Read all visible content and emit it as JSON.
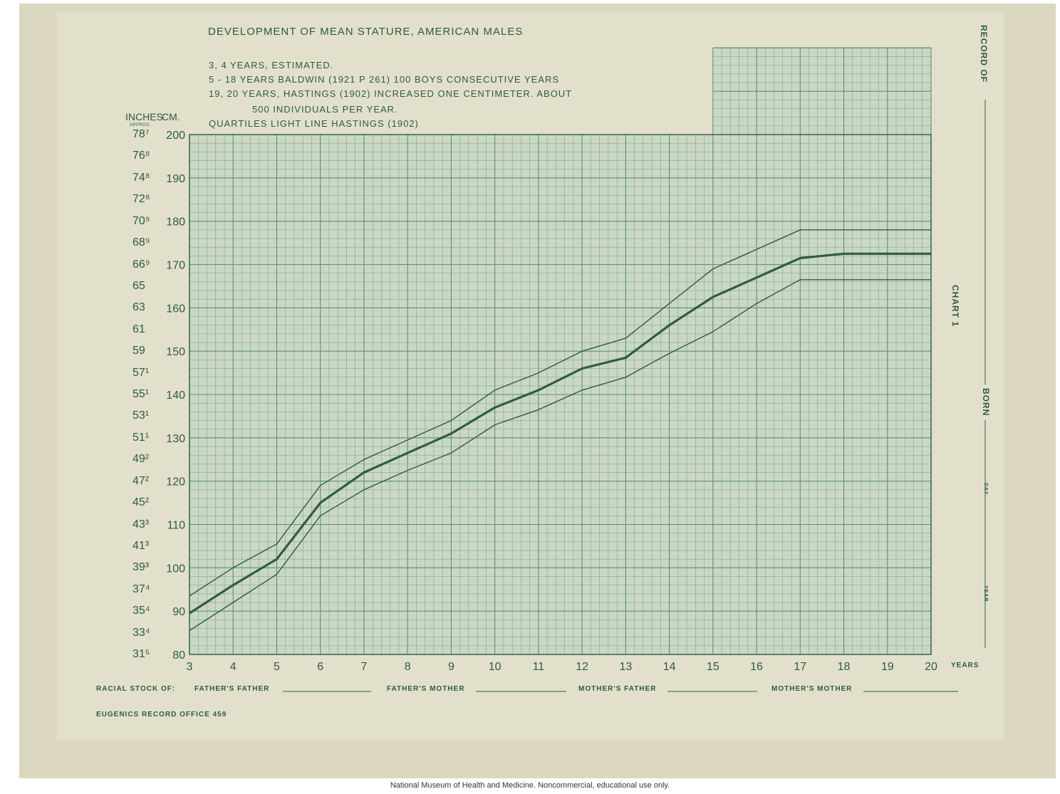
{
  "title": "DEVELOPMENT OF MEAN STATURE, AMERICAN MALES",
  "notes": [
    "3, 4 YEARS, ESTIMATED.",
    "5 - 18 YEARS BALDWIN (1921 P 261) 100 BOYS CONSECUTIVE YEARS",
    "19, 20 YEARS, HASTINGS (1902) INCREASED ONE CENTIMETER.  ABOUT",
    "500 INDIVIDUALS PER YEAR.",
    "QUARTILES LIGHT LINE HASTINGS (1902)"
  ],
  "axis_units": {
    "inches": "INCHES",
    "approx": "APPROX.",
    "cm": "CM.",
    "years": "YEARS"
  },
  "inch_labels": [
    "78⁷",
    "76⁸",
    "74⁸",
    "72⁸",
    "70⁹",
    "68⁹",
    "66⁹",
    "65",
    "63",
    "61",
    "59",
    "57¹",
    "55¹",
    "53¹",
    "51¹",
    "49²",
    "47²",
    "45²",
    "43³",
    "41³",
    "39³",
    "37⁴",
    "35⁴",
    "33⁴",
    "31⁵"
  ],
  "racial_stock": {
    "label": "RACIAL STOCK OF:",
    "ff": "FATHER'S FATHER",
    "fm": "FATHER'S MOTHER",
    "mf": "MOTHER'S FATHER",
    "mm": "MOTHER'S MOTHER"
  },
  "office": "EUGENICS RECORD OFFICE 459",
  "side": {
    "record": "RECORD OF",
    "born": "BORN",
    "day": "DAY",
    "year": "YEAR",
    "chart": "CHART 1"
  },
  "caption": "National Museum of Health and Medicine. Noncommercial, educational use only.",
  "colors": {
    "ink": "#2f5a46",
    "grid": "#5f8f76",
    "paper": "#e2e0cb",
    "grid_fill": "#cad8c3"
  },
  "chart_data": {
    "type": "line",
    "title": "DEVELOPMENT OF MEAN STATURE, AMERICAN MALES",
    "xlabel": "YEARS",
    "ylabel": "CM.",
    "x": [
      3,
      4,
      5,
      6,
      7,
      8,
      9,
      10,
      11,
      12,
      13,
      14,
      15,
      16,
      17,
      18,
      19,
      20
    ],
    "xlim": [
      3,
      20
    ],
    "ylim": [
      80,
      200
    ],
    "y_ticks": [
      80,
      90,
      100,
      110,
      120,
      130,
      140,
      150,
      160,
      170,
      180,
      190,
      200
    ],
    "grid": true,
    "series": [
      {
        "values": [
          89.5,
          96,
          102,
          115,
          122,
          126.5,
          131,
          137,
          141,
          146,
          148.5,
          156,
          162.5,
          167,
          171.5,
          172.5,
          172.5,
          172.5
        ],
        "weight": "heavy"
      },
      {
        "values": [
          93.5,
          100,
          105.5,
          119,
          125,
          129.5,
          134,
          141,
          145,
          150,
          153,
          161,
          169,
          173.5,
          178,
          178,
          178,
          178
        ],
        "weight": "light"
      },
      {
        "values": [
          85.5,
          92,
          98.5,
          112,
          118,
          122.5,
          126.5,
          133,
          136.5,
          141,
          144,
          149.5,
          154.5,
          161,
          166.5,
          166.5,
          166.5,
          166.5
        ],
        "weight": "light"
      }
    ]
  }
}
